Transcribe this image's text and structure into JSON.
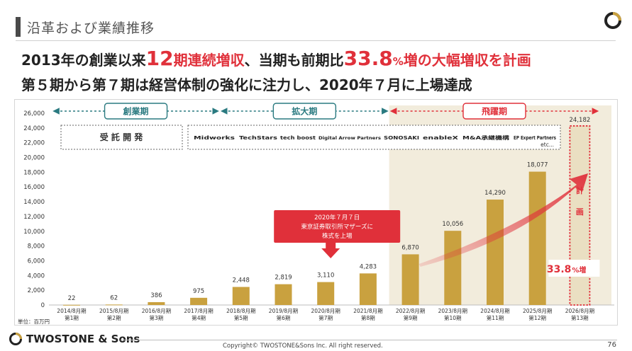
{
  "header": {
    "title": "沿革および業績推移",
    "headline1": {
      "part1": "2013年の創業以来",
      "num": "12",
      "part2": "期連続増収",
      "part3": "、当期も前期比",
      "pct": "33.8",
      "pct_unit": "%",
      "part4": "増の大幅増収を計画"
    },
    "headline2": "第５期から第７期は経営体制の強化に注力し、2020年７月に上場達成"
  },
  "chart_data": {
    "type": "bar",
    "categories": [
      "2014/8月期\n第1期",
      "2015/8月期\n第2期",
      "2016/8月期\n第3期",
      "2017/8月期\n第4期",
      "2018/8月期\n第5期",
      "2019/8月期\n第6期",
      "2020/8月期\n第7期",
      "2021/8月期\n第8期",
      "2022/8月期\n第9期",
      "2023/8月期\n第10期",
      "2024/8月期\n第11期",
      "2025/8月期\n第12期",
      "2026/8月期\n第13期"
    ],
    "x_top": [
      "2014/8月期",
      "2015/8月期",
      "2016/8月期",
      "2017/8月期",
      "2018/8月期",
      "2019/8月期",
      "2020/8月期",
      "2021/8月期",
      "2022/8月期",
      "2023/8月期",
      "2024/8月期",
      "2025/8月期",
      "2026/8月期"
    ],
    "x_bottom": [
      "第1期",
      "第2期",
      "第3期",
      "第4期",
      "第5期",
      "第6期",
      "第7期",
      "第8期",
      "第9期",
      "第10期",
      "第11期",
      "第12期",
      "第13期"
    ],
    "values": [
      22,
      62,
      386,
      975,
      2448,
      2819,
      3110,
      4283,
      6870,
      10056,
      14290,
      18077,
      24182
    ],
    "value_labels": [
      "22",
      "62",
      "386",
      "975",
      "2,448",
      "2,819",
      "3,110",
      "4,283",
      "6,870",
      "10,056",
      "14,290",
      "18,077",
      "24,182"
    ],
    "planned_index": 12,
    "ylim": [
      0,
      26000
    ],
    "yticks": [
      0,
      2000,
      4000,
      6000,
      8000,
      10000,
      12000,
      14000,
      16000,
      18000,
      20000,
      22000,
      24000,
      26000
    ],
    "ytick_labels": [
      "0",
      "2,000",
      "4,000",
      "6,000",
      "8,000",
      "10,000",
      "12,000",
      "14,000",
      "16,000",
      "18,000",
      "20,000",
      "22,000",
      "24,000",
      "26,000"
    ],
    "unit_label": "単位：百万円",
    "grid": false,
    "colors": {
      "bar": "#c9a13f",
      "highlight_bg": "#f2ecdc",
      "red": "#e0303a",
      "teal": "#2a7a80",
      "frame": "#7a7a7a"
    },
    "phases": [
      {
        "label": "創業期",
        "start_index": 0,
        "end_index": 3,
        "color": "#2a7a80"
      },
      {
        "label": "拡大期",
        "start_index": 4,
        "end_index": 7,
        "color": "#2a7a80"
      },
      {
        "label": "飛躍期",
        "start_index": 8,
        "end_index": 12,
        "color": "#e0303a"
      }
    ],
    "boxes": {
      "contract_dev": "受 託 開 発",
      "services": [
        "Midworks",
        "TechStars",
        "tech boost",
        "Digital Arrow Partners",
        "SONOSAKI",
        "enableX",
        "M&A承継機構",
        "EP Expert Partners"
      ],
      "services_etc": "etc..."
    },
    "callout": {
      "line1": "2020年７月７日",
      "line2": "東京証券取引所マザーズに",
      "line3": "株式を上場"
    },
    "plan": {
      "char1": "計",
      "char2": "画",
      "growth_num": "33.8",
      "growth_unit": "%増"
    }
  },
  "footer": {
    "logo_text": "TWOSTONE & Sons",
    "copyright": "Copyright© TWOSTONE&Sons Inc. All right reserved.",
    "page": "76"
  }
}
